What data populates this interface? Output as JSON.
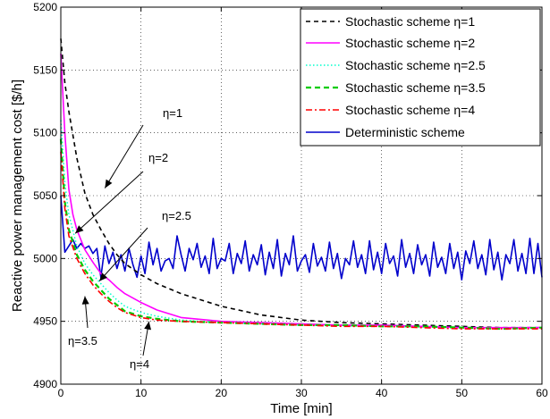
{
  "chart_data": {
    "type": "line",
    "title": "",
    "xlabel": "Time [min]",
    "ylabel": "Reactive power management cost [$/h]",
    "xlim": [
      0,
      60
    ],
    "ylim": [
      4900,
      5200
    ],
    "xticks": [
      "0",
      "10",
      "20",
      "30",
      "40",
      "50",
      "60"
    ],
    "yticks": [
      "4900",
      "4950",
      "5000",
      "5050",
      "5100",
      "5150",
      "5200"
    ],
    "grid": true,
    "legend_position": "top-right",
    "series": [
      {
        "name": "Stochastic scheme η=1",
        "color": "#000000",
        "dash": "dashed-black",
        "x": [
          0,
          0.5,
          1,
          2,
          3,
          4,
          5,
          6,
          7,
          8,
          10,
          12,
          15,
          20,
          25,
          30,
          35,
          40,
          45,
          50,
          55,
          60
        ],
        "y": [
          5175,
          5140,
          5117,
          5080,
          5052,
          5035,
          5023,
          5012,
          5003,
          4996,
          4987,
          4980,
          4972,
          4962,
          4955,
          4951,
          4949,
          4948,
          4947,
          4946,
          4945,
          4945
        ]
      },
      {
        "name": "Stochastic scheme η=2",
        "color": "#ff00ff",
        "dash": "solid",
        "x": [
          0,
          0.5,
          1,
          1.5,
          2,
          3,
          4,
          5,
          6,
          7,
          8,
          10,
          12,
          15,
          20,
          25,
          30,
          35,
          40,
          45,
          50,
          55,
          60
        ],
        "y": [
          5163,
          5100,
          5055,
          5035,
          5023,
          5007,
          4997,
          4988,
          4983,
          4977,
          4972,
          4965,
          4959,
          4953,
          4950,
          4949,
          4948,
          4947,
          4947,
          4946,
          4945,
          4945,
          4945
        ]
      },
      {
        "name": "Stochastic scheme η=2.5",
        "color": "#00ffcc",
        "dash": "dotted",
        "x": [
          0,
          0.5,
          1,
          2,
          3,
          4,
          5,
          6,
          7,
          8,
          10,
          12,
          15,
          20,
          30,
          40,
          50,
          60
        ],
        "y": [
          5110,
          5060,
          5035,
          5010,
          4996,
          4987,
          4980,
          4973,
          4967,
          4962,
          4957,
          4954,
          4951,
          4949,
          4947,
          4946,
          4945,
          4945
        ]
      },
      {
        "name": "Stochastic scheme η=3.5",
        "color": "#00cc00",
        "dash": "dashed-green",
        "x": [
          0,
          0.5,
          1,
          2,
          3,
          4,
          5,
          6,
          7,
          8,
          10,
          12,
          15,
          20,
          25,
          30,
          35,
          40,
          45,
          50,
          55,
          60
        ],
        "y": [
          5095,
          5045,
          5023,
          5003,
          4991,
          4982,
          4975,
          4968,
          4963,
          4958,
          4954,
          4952,
          4950,
          4949,
          4948,
          4947,
          4947,
          4946,
          4946,
          4945,
          4944,
          4945
        ]
      },
      {
        "name": "Stochastic scheme η=4",
        "color": "#ff0000",
        "dash": "dashdot",
        "x": [
          0,
          0.5,
          1,
          2,
          3,
          4,
          5,
          6,
          7,
          8,
          10,
          12,
          15,
          20,
          25,
          30,
          35,
          40,
          45,
          50,
          55,
          60
        ],
        "y": [
          5085,
          5040,
          5018,
          5000,
          4988,
          4979,
          4972,
          4966,
          4961,
          4957,
          4953,
          4951,
          4950,
          4949,
          4948,
          4947,
          4946,
          4946,
          4945,
          4944,
          4944,
          4944
        ]
      },
      {
        "name": "Deterministic scheme",
        "color": "#0000cc",
        "dash": "solid",
        "x": [
          0,
          0.5,
          1,
          1.5,
          2,
          2.5,
          3,
          3.5,
          4,
          4.5,
          5,
          5.5,
          6,
          6.5,
          7,
          7.5,
          8,
          8.5,
          9,
          9.5,
          10,
          10.5,
          11,
          11.5,
          12,
          12.5,
          13,
          13.5,
          14,
          14.5,
          15,
          15.5,
          16,
          16.5,
          17,
          17.5,
          18,
          18.5,
          19,
          19.5,
          20,
          20.5,
          21,
          21.5,
          22,
          22.5,
          23,
          23.5,
          24,
          24.5,
          25,
          25.5,
          26,
          26.5,
          27,
          27.5,
          28,
          28.5,
          29,
          29.5,
          30,
          30.5,
          31,
          31.5,
          32,
          32.5,
          33,
          33.5,
          34,
          34.5,
          35,
          35.5,
          36,
          36.5,
          37,
          37.5,
          38,
          38.5,
          39,
          39.5,
          40,
          40.5,
          41,
          41.5,
          42,
          42.5,
          43,
          43.5,
          44,
          44.5,
          45,
          45.5,
          46,
          46.5,
          47,
          47.5,
          48,
          48.5,
          49,
          49.5,
          50,
          50.5,
          51,
          51.5,
          52,
          52.5,
          53,
          53.5,
          54,
          54.5,
          55,
          55.5,
          56,
          56.5,
          57,
          57.5,
          58,
          58.5,
          59,
          59.5,
          60
        ],
        "y": [
          5050,
          5005,
          5010,
          5015,
          5008,
          5012,
          5008,
          5010,
          5004,
          5008,
          4985,
          5010,
          4996,
          5005,
          4992,
          5003,
          4990,
          5008,
          4995,
          4985,
          5002,
          4988,
          5013,
          4995,
          5008,
          4990,
          4998,
          5000,
          4992,
          5018,
          5003,
          4990,
          5008,
          4999,
          5012,
          4993,
          5002,
          4988,
          5016,
          4992,
          5000,
          4998,
          5012,
          4988,
          5004,
          4996,
          5014,
          4990,
          5003,
          4995,
          5011,
          4987,
          5005,
          4992,
          5015,
          4986,
          5004,
          4995,
          5018,
          4990,
          4998,
          5003,
          4989,
          5012,
          4994,
          5001,
          4990,
          5013,
          4992,
          5004,
          4984,
          5000,
          4995,
          5014,
          4993,
          5003,
          4988,
          5014,
          4991,
          5005,
          4988,
          5012,
          4996,
          5002,
          4986,
          5015,
          4993,
          5004,
          4988,
          5011,
          4995,
          5003,
          4986,
          5013,
          4993,
          5001,
          4988,
          5012,
          4992,
          5005,
          4983,
          5006,
          4996,
          5014,
          4992,
          5003,
          4987,
          5015,
          4991,
          5005,
          4983,
          5003,
          4996,
          5015,
          4990,
          5004,
          4988,
          5016,
          4988,
          5012,
          4985
        ]
      }
    ],
    "annotations": [
      {
        "text": "η=1",
        "data_x": 5.5,
        "data_y": 5056
      },
      {
        "text": "η=2",
        "data_x": 1.8,
        "data_y": 5020
      },
      {
        "text": "η=2.5",
        "data_x": 4.8,
        "data_y": 4982
      },
      {
        "text": "η=3.5",
        "data_x": 3.0,
        "data_y": 4970
      },
      {
        "text": "η=4",
        "data_x": 11.0,
        "data_y": 4950
      }
    ]
  }
}
